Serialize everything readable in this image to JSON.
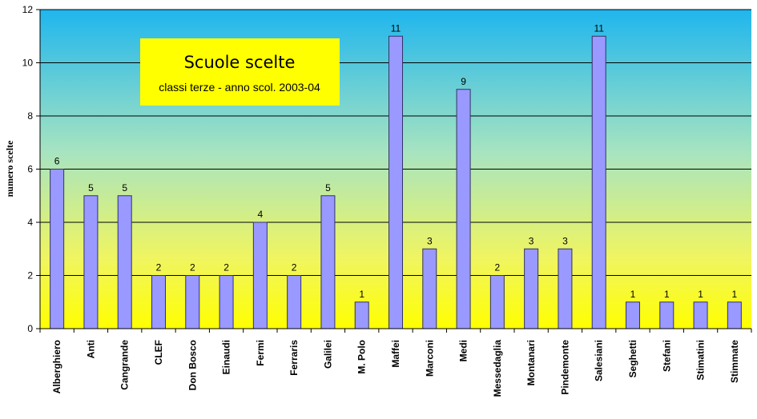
{
  "chart_data": {
    "type": "bar",
    "title": "Scuole scelte",
    "subtitle": "classi terze - anno scol. 2003-04",
    "xlabel": "",
    "ylabel": "numero scelte",
    "ylim": [
      0,
      12
    ],
    "yticks": [
      0,
      2,
      4,
      6,
      8,
      10,
      12
    ],
    "grid": true,
    "categories": [
      "Alberghiero",
      "Anti",
      "Cangrande",
      "CLEF",
      "Don Bosco",
      "Einaudi",
      "Fermi",
      "Ferraris",
      "Galilei",
      "M. Polo",
      "Maffei",
      "Marconi",
      "Medi",
      "Messedaglia",
      "Montanari",
      "Pindemonte",
      "Salesiani",
      "Seghetti",
      "Stefani",
      "Stimatini",
      "Stimmate"
    ],
    "values": [
      6,
      5,
      5,
      2,
      2,
      2,
      4,
      2,
      5,
      1,
      11,
      3,
      9,
      2,
      3,
      3,
      11,
      1,
      1,
      1,
      1
    ],
    "colors": {
      "bar_fill": "#9999ff",
      "bar_stroke": "#333366",
      "plot_top": "#1fb6ee",
      "plot_bottom": "#ffff00",
      "title_box": "#ffff00"
    }
  }
}
